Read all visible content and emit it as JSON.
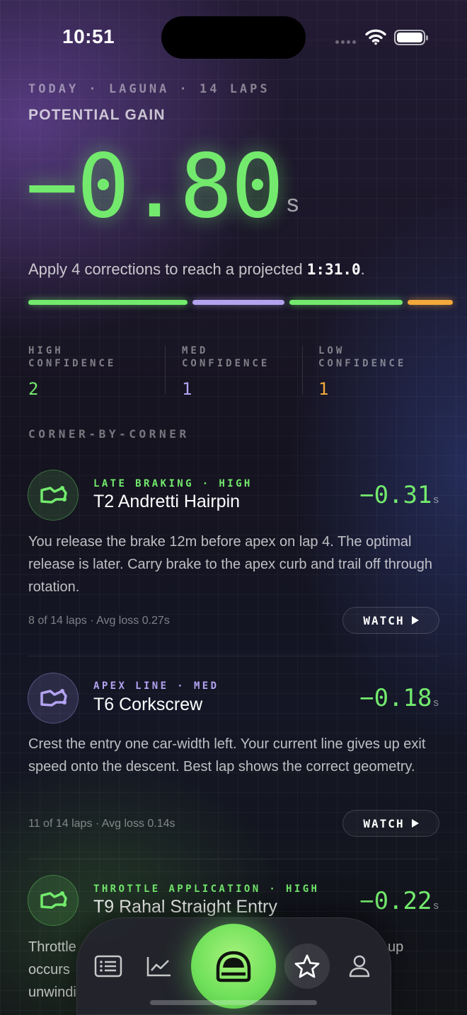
{
  "status": {
    "time": "10:51"
  },
  "session": {
    "kicker": "TODAY · LAGUNA · 14 LAPS"
  },
  "summary": {
    "label": "POTENTIAL GAIN",
    "value": "−0.80",
    "unit": "s",
    "apply_text": "Apply 4 corrections to reach a projected ",
    "projected": "1:31.0",
    "apply_end": "."
  },
  "colors": {
    "high": "#73ea6d",
    "med": "#b3a3f0",
    "low": "#f3a93b"
  },
  "confidence": [
    {
      "label_line1": "HIGH",
      "label_line2": "CONFIDENCE",
      "count": "2"
    },
    {
      "label_line1": "MED",
      "label_line2": "CONFIDENCE",
      "count": "1"
    },
    {
      "label_line1": "LOW",
      "label_line2": "CONFIDENCE",
      "count": "1"
    }
  ],
  "section_title": "CORNER-BY-CORNER",
  "corners": [
    {
      "category": "LATE BRAKING · HIGH",
      "name": "T2 Andretti Hairpin",
      "delta": "−0.31",
      "unit": "s",
      "description": "You release the brake 12m before apex on lap 4. The optimal release is later. Carry brake to the apex curb and trail off through rotation.",
      "meta": "8 of 14 laps · Avg loss 0.27s",
      "action": "WATCH",
      "icon": "track-map-icon"
    },
    {
      "category": "APEX LINE · MED",
      "name": "T6 Corkscrew",
      "delta": "−0.18",
      "unit": "s",
      "description": "Crest the entry one car-width left. Your current line gives up exit speed onto the descent. Best lap shows the correct geometry.",
      "meta": "11 of 14 laps · Avg loss 0.14s",
      "action": "WATCH",
      "icon": "track-map-icon"
    },
    {
      "category": "THROTTLE APPLICATION · HIGH",
      "name": "T9 Rahal Straight Entry",
      "delta": "−0.22",
      "unit": "s",
      "desc_line1_start": "Throttle",
      "desc_line1_end": "up",
      "desc_line2": "occurs",
      "desc_line3": "unwindi",
      "icon": "track-map-icon"
    }
  ],
  "nav": {
    "items": [
      "list-icon",
      "chart-icon",
      "car-icon",
      "star-icon",
      "profile-icon"
    ],
    "active": "car-icon"
  }
}
